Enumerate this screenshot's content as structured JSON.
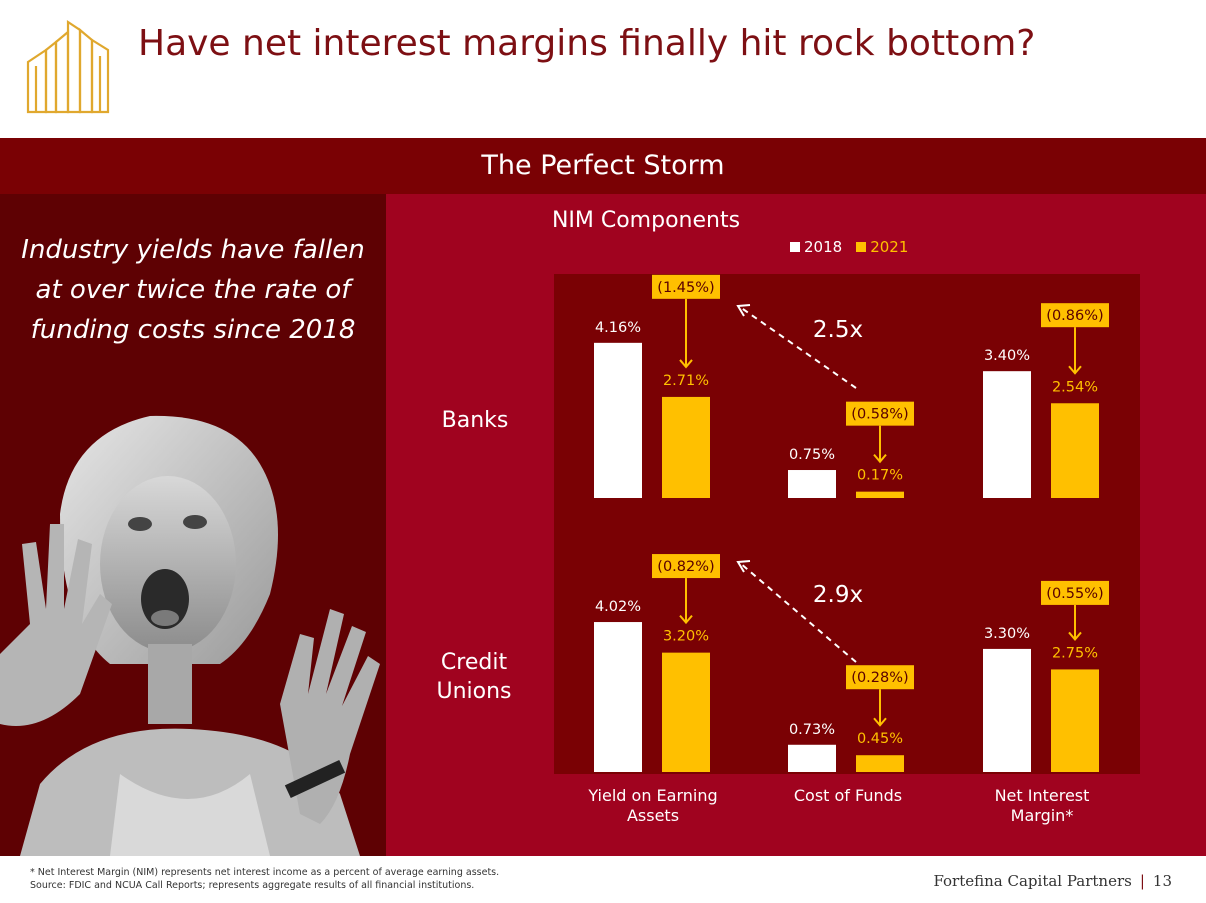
{
  "slide": {
    "title": "Have net interest margins finally hit rock bottom?",
    "banner": "The Perfect Storm",
    "headline": "Industry yields have fallen at over twice the rate of funding costs since 2018",
    "footnote_1": "* Net Interest Margin (NIM) represents net interest income as a percent of average earning assets.",
    "footnote_2": "Source: FDIC and NCUA Call Reports; represents aggregate results of all financial institutions.",
    "brand": "Fortefina Capital Partners",
    "page_number": "13"
  },
  "colors": {
    "y2018": "#ffffff",
    "y2021": "#ffc000",
    "panel": "#a0031f",
    "inner": "#7a0104",
    "title": "#7d0f13"
  },
  "chart_data": {
    "type": "bar",
    "title": "NIM Components",
    "legend": [
      "2018",
      "2021"
    ],
    "legend_placement": "top",
    "categories": [
      "Yield on Earning Assets",
      "Cost of Funds",
      "Net Interest Margin*"
    ],
    "panels": [
      {
        "name": "Banks",
        "series": [
          {
            "name": "2018",
            "values": [
              4.16,
              0.75,
              3.4
            ],
            "labels": [
              "4.16%",
              "0.75%",
              "3.40%"
            ]
          },
          {
            "name": "2021",
            "values": [
              2.71,
              0.17,
              2.54
            ],
            "labels": [
              "2.71%",
              "0.17%",
              "2.54%"
            ]
          }
        ],
        "changes": [
          "(1.45%)",
          "(0.58%)",
          "(0.86%)"
        ],
        "ratio": "2.5x"
      },
      {
        "name": "Credit Unions",
        "series": [
          {
            "name": "2018",
            "values": [
              4.02,
              0.73,
              3.3
            ],
            "labels": [
              "4.02%",
              "0.73%",
              "3.30%"
            ]
          },
          {
            "name": "2021",
            "values": [
              3.2,
              0.45,
              2.75
            ],
            "labels": [
              "3.20%",
              "0.45%",
              "2.75%"
            ]
          }
        ],
        "changes": [
          "(0.82%)",
          "(0.28%)",
          "(0.55%)"
        ],
        "ratio": "2.9x"
      }
    ]
  }
}
